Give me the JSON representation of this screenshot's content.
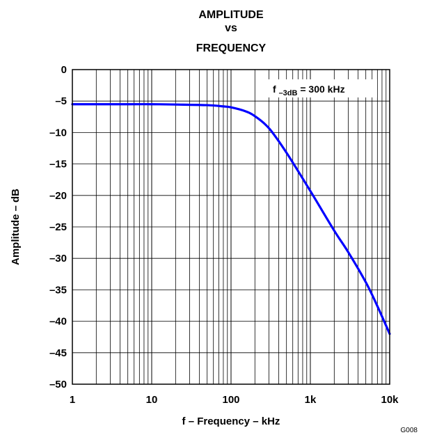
{
  "chart_data": {
    "type": "line",
    "title_lines": [
      "AMPLITUDE",
      "vs",
      "FREQUENCY"
    ],
    "xlabel": "f – Frequency – kHz",
    "ylabel": "Amplitude – dB",
    "x_scale": "log",
    "xlim": [
      1,
      10000
    ],
    "ylim": [
      -50,
      0
    ],
    "x_ticks": [
      {
        "value": 1,
        "label": "1"
      },
      {
        "value": 10,
        "label": "10"
      },
      {
        "value": 100,
        "label": "100"
      },
      {
        "value": 1000,
        "label": "1k"
      },
      {
        "value": 10000,
        "label": "10k"
      }
    ],
    "y_ticks": [
      {
        "value": 0,
        "label": "0"
      },
      {
        "value": -5,
        "label": "–5"
      },
      {
        "value": -10,
        "label": "–10"
      },
      {
        "value": -15,
        "label": "–15"
      },
      {
        "value": -20,
        "label": "–20"
      },
      {
        "value": -25,
        "label": "–25"
      },
      {
        "value": -30,
        "label": "–30"
      },
      {
        "value": -35,
        "label": "–35"
      },
      {
        "value": -40,
        "label": "–40"
      },
      {
        "value": -45,
        "label": "–45"
      },
      {
        "value": -50,
        "label": "–50"
      }
    ],
    "grid": true,
    "annotation": {
      "main": "f",
      "subscript": "–3dB",
      "rest": " = 300 kHz"
    },
    "figure_id": "G008",
    "series": [
      {
        "color": "#0000ff",
        "x": [
          1,
          2,
          5,
          10,
          20,
          50,
          80,
          100,
          150,
          200,
          300,
          500,
          1000,
          2000,
          3000,
          5000,
          7000,
          10000
        ],
        "y": [
          -5.5,
          -5.5,
          -5.5,
          -5.5,
          -5.55,
          -5.65,
          -5.85,
          -6.0,
          -6.6,
          -7.4,
          -9.3,
          -13.2,
          -19.3,
          -25.6,
          -29.0,
          -33.8,
          -37.6,
          -42.0
        ]
      }
    ]
  }
}
